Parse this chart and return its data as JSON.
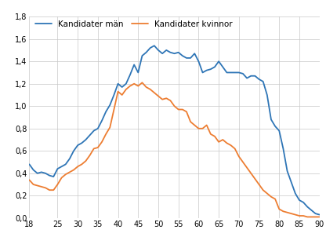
{
  "legend_men": "Kandidater män",
  "legend_women": "Kandidater kvinnor",
  "color_men": "#2e75b6",
  "color_women": "#ed7d31",
  "background_color": "#ffffff",
  "grid_color": "#c8c8c8",
  "xlim": [
    18,
    90
  ],
  "ylim": [
    0.0,
    1.8
  ],
  "xticks": [
    18,
    25,
    30,
    35,
    40,
    45,
    50,
    55,
    60,
    65,
    70,
    75,
    80,
    85,
    90
  ],
  "yticks": [
    0.0,
    0.2,
    0.4,
    0.6,
    0.8,
    1.0,
    1.2,
    1.4,
    1.6,
    1.8
  ],
  "men_x": [
    18,
    19,
    20,
    21,
    22,
    23,
    24,
    25,
    26,
    27,
    28,
    29,
    30,
    31,
    32,
    33,
    34,
    35,
    36,
    37,
    38,
    39,
    40,
    41,
    42,
    43,
    44,
    45,
    46,
    47,
    48,
    49,
    50,
    51,
    52,
    53,
    54,
    55,
    56,
    57,
    58,
    59,
    60,
    61,
    62,
    63,
    64,
    65,
    66,
    67,
    68,
    69,
    70,
    71,
    72,
    73,
    74,
    75,
    76,
    77,
    78,
    79,
    80,
    81,
    82,
    83,
    84,
    85,
    86,
    87,
    88,
    89,
    90
  ],
  "men_y": [
    0.48,
    0.43,
    0.4,
    0.41,
    0.4,
    0.38,
    0.37,
    0.44,
    0.46,
    0.48,
    0.53,
    0.6,
    0.65,
    0.67,
    0.7,
    0.74,
    0.78,
    0.8,
    0.87,
    0.95,
    1.01,
    1.1,
    1.2,
    1.17,
    1.2,
    1.28,
    1.37,
    1.3,
    1.45,
    1.48,
    1.52,
    1.54,
    1.5,
    1.47,
    1.5,
    1.48,
    1.47,
    1.48,
    1.45,
    1.43,
    1.43,
    1.47,
    1.4,
    1.3,
    1.32,
    1.33,
    1.35,
    1.4,
    1.35,
    1.3,
    1.3,
    1.3,
    1.3,
    1.29,
    1.25,
    1.27,
    1.27,
    1.24,
    1.22,
    1.1,
    0.88,
    0.82,
    0.78,
    0.62,
    0.42,
    0.32,
    0.22,
    0.16,
    0.14,
    0.1,
    0.07,
    0.04,
    0.03
  ],
  "women_x": [
    18,
    19,
    20,
    21,
    22,
    23,
    24,
    25,
    26,
    27,
    28,
    29,
    30,
    31,
    32,
    33,
    34,
    35,
    36,
    37,
    38,
    39,
    40,
    41,
    42,
    43,
    44,
    45,
    46,
    47,
    48,
    49,
    50,
    51,
    52,
    53,
    54,
    55,
    56,
    57,
    58,
    59,
    60,
    61,
    62,
    63,
    64,
    65,
    66,
    67,
    68,
    69,
    70,
    71,
    72,
    73,
    74,
    75,
    76,
    77,
    78,
    79,
    80,
    81,
    82,
    83,
    84,
    85,
    86,
    87,
    88,
    89,
    90
  ],
  "women_y": [
    0.34,
    0.3,
    0.29,
    0.28,
    0.27,
    0.25,
    0.25,
    0.3,
    0.36,
    0.39,
    0.41,
    0.43,
    0.46,
    0.48,
    0.51,
    0.56,
    0.62,
    0.63,
    0.68,
    0.75,
    0.81,
    0.97,
    1.13,
    1.1,
    1.15,
    1.18,
    1.2,
    1.18,
    1.21,
    1.17,
    1.15,
    1.12,
    1.09,
    1.06,
    1.07,
    1.05,
    1.0,
    0.97,
    0.97,
    0.95,
    0.86,
    0.83,
    0.8,
    0.8,
    0.83,
    0.75,
    0.73,
    0.68,
    0.7,
    0.67,
    0.65,
    0.62,
    0.55,
    0.5,
    0.45,
    0.4,
    0.35,
    0.3,
    0.25,
    0.22,
    0.19,
    0.17,
    0.08,
    0.06,
    0.05,
    0.04,
    0.03,
    0.02,
    0.02,
    0.01,
    0.01,
    0.01,
    0.01
  ],
  "linewidth": 1.3,
  "tick_fontsize": 7.0,
  "legend_fontsize": 7.5
}
